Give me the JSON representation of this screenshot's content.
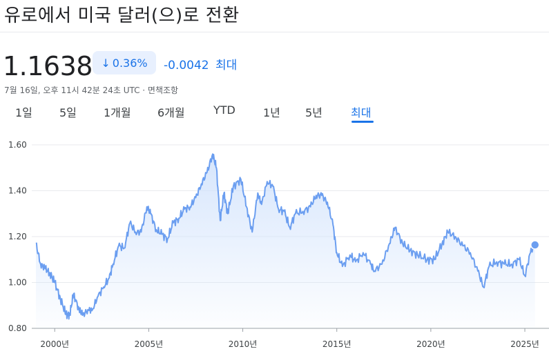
{
  "header": {
    "title": "유로에서 미국 달러(으)로 전환",
    "price": "1.1638",
    "change_percent": "0.36%",
    "change_value": "-0.0042",
    "change_period": "최대",
    "timestamp": "7월 16일, 오후 11시 42분 24초 UTC · 면책조항"
  },
  "icons": {
    "change_arrow": "arrow-down-icon"
  },
  "colors": {
    "accent": "#1a73e8",
    "line": "#6b9ef0",
    "area_top": "#d2e3fc",
    "badge_bg": "#e8f0fe"
  },
  "tabs": [
    {
      "label": "1일"
    },
    {
      "label": "5일"
    },
    {
      "label": "1개월"
    },
    {
      "label": "6개월"
    },
    {
      "label": "YTD"
    },
    {
      "label": "1년"
    },
    {
      "label": "5년"
    },
    {
      "label": "최대",
      "active": true
    }
  ],
  "chart_data": {
    "type": "area",
    "ylim": [
      0.8,
      1.6
    ],
    "y_ticks": [
      "0.80",
      "1.00",
      "1.20",
      "1.40",
      "1.60"
    ],
    "x_ticks": [
      {
        "label": "2000년",
        "year": 2000
      },
      {
        "label": "2005년",
        "year": 2005
      },
      {
        "label": "2010년",
        "year": 2010
      },
      {
        "label": "2015년",
        "year": 2015
      },
      {
        "label": "2020년",
        "year": 2020
      },
      {
        "label": "2025년",
        "year": 2025
      }
    ],
    "grid": true,
    "x": [
      1999.0,
      1999.25,
      1999.5,
      1999.75,
      2000.0,
      2000.3,
      2000.6,
      2000.8,
      2001.0,
      2001.3,
      2001.5,
      2001.8,
      2002.0,
      2002.3,
      2002.6,
      2002.9,
      2003.1,
      2003.4,
      2003.7,
      2004.0,
      2004.3,
      2004.6,
      2004.9,
      2005.1,
      2005.4,
      2005.7,
      2006.0,
      2006.3,
      2006.6,
      2006.9,
      2007.2,
      2007.5,
      2007.8,
      2008.1,
      2008.4,
      2008.6,
      2008.8,
      2009.0,
      2009.2,
      2009.5,
      2009.9,
      2010.2,
      2010.5,
      2010.8,
      2011.0,
      2011.3,
      2011.6,
      2011.9,
      2012.2,
      2012.5,
      2012.8,
      2013.2,
      2013.6,
      2013.9,
      2014.2,
      2014.5,
      2014.8,
      2015.0,
      2015.3,
      2015.7,
      2016.0,
      2016.4,
      2016.8,
      2017.0,
      2017.4,
      2017.8,
      2018.1,
      2018.5,
      2018.9,
      2019.3,
      2019.8,
      2020.2,
      2020.6,
      2020.9,
      2021.3,
      2021.7,
      2022.1,
      2022.5,
      2022.8,
      2023.1,
      2023.5,
      2023.9,
      2024.3,
      2024.7,
      2025.0,
      2025.3,
      2025.54
    ],
    "y": [
      1.17,
      1.08,
      1.06,
      1.04,
      1.0,
      0.93,
      0.86,
      0.86,
      0.95,
      0.88,
      0.86,
      0.88,
      0.88,
      0.94,
      0.98,
      1.02,
      1.08,
      1.16,
      1.15,
      1.26,
      1.22,
      1.22,
      1.33,
      1.3,
      1.23,
      1.21,
      1.19,
      1.26,
      1.28,
      1.32,
      1.33,
      1.37,
      1.43,
      1.48,
      1.56,
      1.5,
      1.27,
      1.39,
      1.3,
      1.42,
      1.45,
      1.33,
      1.22,
      1.39,
      1.34,
      1.44,
      1.42,
      1.32,
      1.31,
      1.24,
      1.3,
      1.31,
      1.33,
      1.38,
      1.38,
      1.35,
      1.25,
      1.13,
      1.07,
      1.12,
      1.09,
      1.13,
      1.08,
      1.05,
      1.08,
      1.17,
      1.24,
      1.17,
      1.14,
      1.12,
      1.1,
      1.1,
      1.17,
      1.22,
      1.2,
      1.16,
      1.13,
      1.05,
      0.98,
      1.07,
      1.09,
      1.08,
      1.08,
      1.1,
      1.03,
      1.13,
      1.1638
    ]
  }
}
